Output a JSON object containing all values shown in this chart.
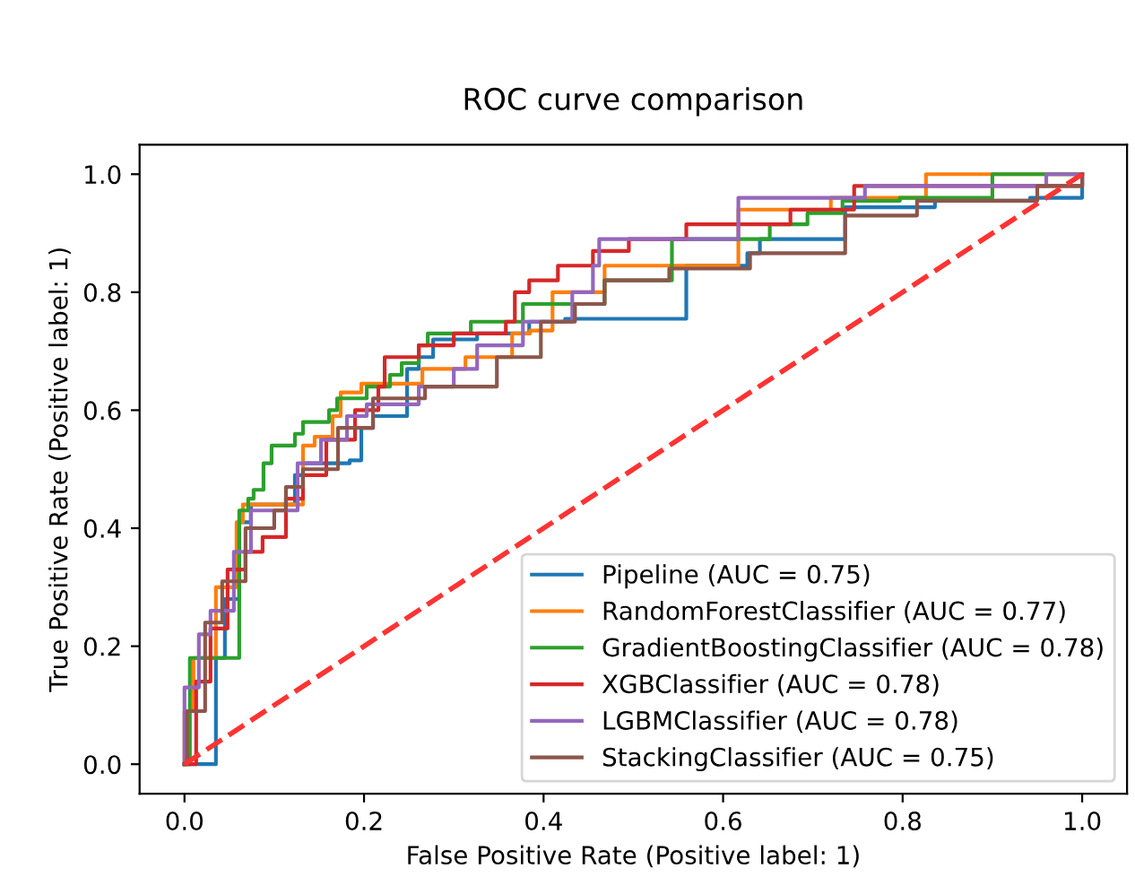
{
  "chart_data": {
    "type": "step",
    "title": "ROC curve comparison",
    "xlabel": "False Positive Rate (Positive label: 1)",
    "ylabel": "True Positive Rate (Positive label: 1)",
    "xlim": [
      -0.05,
      1.05
    ],
    "ylim": [
      -0.05,
      1.05
    ],
    "xticks": [
      {
        "value": 0,
        "label": "0.0"
      },
      0.2,
      0.4,
      0.6,
      0.8,
      {
        "value": 1,
        "label": "1.0"
      }
    ],
    "yticks": [
      {
        "value": 0,
        "label": "0.0"
      },
      0.2,
      0.4,
      0.6,
      0.8,
      {
        "value": 1,
        "label": "1.0"
      }
    ],
    "grid": false,
    "legend": "bottom right",
    "series": [
      {
        "name": "Pipeline (AUC = 0.75)",
        "color": "#1f77b4",
        "line_style": "solid",
        "x": [
          0,
          0.01,
          0.035,
          0.045,
          0.061,
          0.074,
          0.123,
          0.132,
          0.184,
          0.197,
          0.21,
          0.248,
          0.261,
          0.277,
          0.326,
          0.384,
          0.424,
          0.559,
          0.627,
          0.641,
          0.641,
          0.736,
          0.736,
          0.836,
          0.942,
          0.942,
          1.0
        ],
        "values": [
          0,
          0,
          0.18,
          0.28,
          0.41,
          0.44,
          0.49,
          0.51,
          0.515,
          0.57,
          0.59,
          0.67,
          0.69,
          0.72,
          0.73,
          0.75,
          0.755,
          0.845,
          0.866,
          0.866,
          0.89,
          0.89,
          0.944,
          0.955,
          0.955,
          0.96,
          1.0
        ]
      },
      {
        "name": "RandomForestClassifier (AUC = 0.77)",
        "color": "#ff7f0e",
        "line_style": "solid",
        "x": [
          0,
          0,
          0.01,
          0.035,
          0.058,
          0.065,
          0.132,
          0.145,
          0.165,
          0.174,
          0.197,
          0.265,
          0.313,
          0.365,
          0.385,
          0.41,
          0.468,
          0.617,
          0.72,
          0.826,
          1.0
        ],
        "values": [
          0,
          0.09,
          0.18,
          0.3,
          0.41,
          0.44,
          0.54,
          0.555,
          0.59,
          0.63,
          0.645,
          0.67,
          0.69,
          0.73,
          0.735,
          0.8,
          0.845,
          0.94,
          0.96,
          1.0,
          1.0
        ]
      },
      {
        "name": "GradientBoostingClassifier (AUC = 0.78)",
        "color": "#2ca02c",
        "line_style": "solid",
        "x": [
          0,
          0.006,
          0.061,
          0.071,
          0.077,
          0.088,
          0.097,
          0.123,
          0.132,
          0.161,
          0.17,
          0.203,
          0.229,
          0.242,
          0.261,
          0.271,
          0.319,
          0.377,
          0.468,
          0.543,
          0.543,
          0.652,
          0.694,
          0.733,
          0.797,
          0.9,
          1.0
        ],
        "values": [
          0,
          0.18,
          0.43,
          0.45,
          0.465,
          0.51,
          0.54,
          0.56,
          0.58,
          0.6,
          0.62,
          0.64,
          0.66,
          0.68,
          0.71,
          0.73,
          0.75,
          0.78,
          0.82,
          0.845,
          0.89,
          0.915,
          0.934,
          0.955,
          0.96,
          1.0,
          1.0
        ]
      },
      {
        "name": "XGBClassifier (AUC = 0.78)",
        "color": "#d62728",
        "line_style": "solid",
        "x": [
          0,
          0.013,
          0.029,
          0.048,
          0.068,
          0.087,
          0.11,
          0.113,
          0.132,
          0.158,
          0.19,
          0.216,
          0.223,
          0.261,
          0.3,
          0.358,
          0.368,
          0.384,
          0.416,
          0.455,
          0.495,
          0.559,
          0.675,
          0.746,
          0.9,
          1.0
        ],
        "values": [
          0,
          0.14,
          0.23,
          0.33,
          0.36,
          0.385,
          0.385,
          0.45,
          0.49,
          0.55,
          0.6,
          0.64,
          0.69,
          0.71,
          0.73,
          0.75,
          0.8,
          0.82,
          0.845,
          0.87,
          0.89,
          0.915,
          0.94,
          0.98,
          0.98,
          1.0
        ]
      },
      {
        "name": "LGBMClassifier (AUC = 0.78)",
        "color": "#9467bd",
        "line_style": "solid",
        "x": [
          0,
          0,
          0.016,
          0.029,
          0.055,
          0.074,
          0.1,
          0.126,
          0.152,
          0.181,
          0.203,
          0.261,
          0.3,
          0.326,
          0.377,
          0.432,
          0.455,
          0.462,
          0.617,
          0.758,
          0.96,
          1.0
        ],
        "values": [
          0,
          0.13,
          0.22,
          0.26,
          0.36,
          0.43,
          0.43,
          0.51,
          0.55,
          0.59,
          0.61,
          0.64,
          0.67,
          0.71,
          0.75,
          0.8,
          0.845,
          0.89,
          0.96,
          0.98,
          1.0,
          1.0
        ]
      },
      {
        "name": "StackingClassifier (AUC = 0.75)",
        "color": "#8c564b",
        "line_style": "solid",
        "x": [
          0,
          0.003,
          0.023,
          0.042,
          0.068,
          0.1,
          0.113,
          0.132,
          0.171,
          0.21,
          0.268,
          0.342,
          0.348,
          0.39,
          0.397,
          0.435,
          0.468,
          0.54,
          0.63,
          0.736,
          0.816,
          0.95,
          1.0
        ],
        "values": [
          0,
          0.09,
          0.24,
          0.31,
          0.4,
          0.43,
          0.47,
          0.5,
          0.57,
          0.62,
          0.64,
          0.64,
          0.69,
          0.69,
          0.75,
          0.78,
          0.82,
          0.84,
          0.866,
          0.93,
          0.955,
          0.98,
          1.0
        ]
      },
      {
        "type": "line",
        "color": "#ff3333",
        "line_style": "dashed",
        "x": [
          0,
          1
        ],
        "values": [
          0,
          1
        ]
      }
    ]
  }
}
